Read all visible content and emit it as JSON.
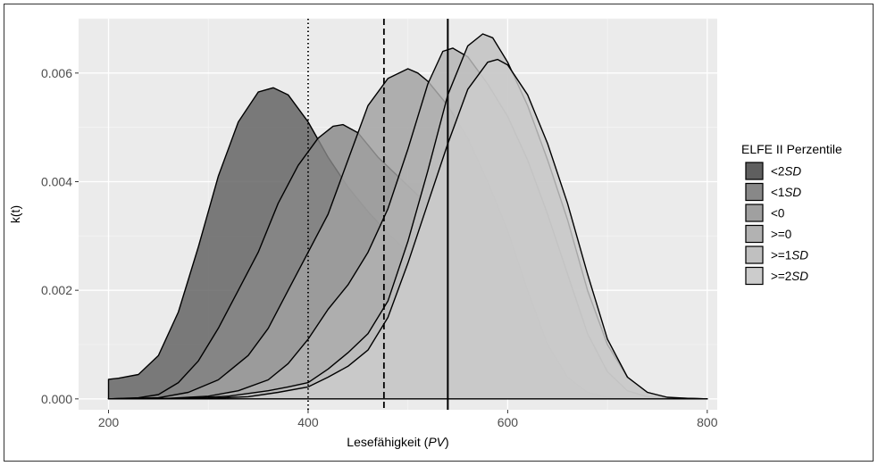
{
  "chart_data": {
    "type": "area",
    "xlabel_main": "Lesefähigkeit (",
    "xlabel_italic": "PV",
    "xlabel_end": ")",
    "ylabel": "k(t)",
    "xlim": [
      170,
      810
    ],
    "ylim": [
      -0.0002,
      0.007
    ],
    "x_ticks": [
      {
        "value": 200,
        "label": "200"
      },
      {
        "value": 400,
        "label": "400"
      },
      {
        "value": 600,
        "label": "600"
      },
      {
        "value": 800,
        "label": "800"
      }
    ],
    "y_ticks": [
      {
        "value": 0.0,
        "label": "0.000"
      },
      {
        "value": 0.002,
        "label": "0.002"
      },
      {
        "value": 0.004,
        "label": "0.004"
      },
      {
        "value": 0.006,
        "label": "0.006"
      }
    ],
    "grid": true,
    "legend_position": "right",
    "legend": {
      "title": "ELFE II Perzentile",
      "items": [
        {
          "prefix": "<2",
          "italic": "SD",
          "color": "#5f5f5f"
        },
        {
          "prefix": "<1",
          "italic": "SD",
          "color": "#888888"
        },
        {
          "prefix": "<0",
          "italic": "",
          "color": "#a0a0a0"
        },
        {
          "prefix": ">=0",
          "italic": "",
          "color": "#b2b2b2"
        },
        {
          "prefix": ">=1",
          "italic": "SD",
          "color": "#c0c0c0"
        },
        {
          "prefix": ">=2",
          "italic": "SD",
          "color": "#cccccc"
        }
      ]
    },
    "reference_lines": [
      {
        "x": 400,
        "style": "dotted"
      },
      {
        "x": 476,
        "style": "dashed"
      },
      {
        "x": 540,
        "style": "solid"
      }
    ],
    "series": [
      {
        "x": [
          200,
          210,
          230,
          250,
          270,
          290,
          310,
          330,
          350,
          365,
          380,
          400,
          420,
          440,
          460,
          480,
          500,
          520,
          540,
          560,
          580,
          600,
          620,
          640,
          660,
          680,
          700,
          720,
          740,
          760,
          780,
          800
        ],
        "y": [
          0.00036,
          0.00038,
          0.00045,
          0.0008,
          0.0016,
          0.0028,
          0.0041,
          0.0051,
          0.00565,
          0.00573,
          0.0056,
          0.0051,
          0.00445,
          0.0039,
          0.00345,
          0.00305,
          0.0027,
          0.0023,
          0.0017,
          0.001,
          0.0005,
          0.0002,
          8e-05,
          3e-05,
          1e-05,
          0,
          0,
          0,
          0,
          0,
          0,
          0
        ]
      },
      {
        "x": [
          200,
          230,
          250,
          270,
          290,
          310,
          330,
          350,
          370,
          390,
          410,
          425,
          435,
          450,
          470,
          490,
          510,
          530,
          550,
          570,
          590,
          610,
          630,
          650,
          670,
          690,
          710,
          730,
          750,
          770,
          800
        ],
        "y": [
          0,
          2e-05,
          8e-05,
          0.0003,
          0.0007,
          0.0013,
          0.002,
          0.0027,
          0.0036,
          0.0043,
          0.0048,
          0.00502,
          0.00505,
          0.0049,
          0.00445,
          0.0041,
          0.00375,
          0.00335,
          0.0028,
          0.002,
          0.0012,
          0.0006,
          0.00025,
          0.0001,
          4e-05,
          1e-05,
          0,
          0,
          0,
          0,
          0
        ]
      },
      {
        "x": [
          200,
          250,
          280,
          310,
          340,
          360,
          380,
          400,
          420,
          440,
          460,
          480,
          500,
          510,
          520,
          540,
          560,
          580,
          600,
          620,
          640,
          660,
          680,
          700,
          720,
          740,
          760,
          800
        ],
        "y": [
          0,
          2e-05,
          0.00012,
          0.00035,
          0.0008,
          0.0013,
          0.002,
          0.0027,
          0.0034,
          0.0044,
          0.0054,
          0.0059,
          0.00608,
          0.006,
          0.00585,
          0.0054,
          0.0048,
          0.004,
          0.0031,
          0.002,
          0.001,
          0.0004,
          0.00012,
          3e-05,
          1e-05,
          0,
          0,
          0
        ]
      },
      {
        "x": [
          200,
          260,
          300,
          330,
          360,
          380,
          400,
          420,
          440,
          460,
          480,
          500,
          520,
          535,
          545,
          560,
          580,
          600,
          620,
          640,
          660,
          680,
          700,
          720,
          740,
          760,
          800
        ],
        "y": [
          0,
          1e-05,
          5e-05,
          0.00015,
          0.00035,
          0.00065,
          0.0011,
          0.00165,
          0.0021,
          0.0027,
          0.0035,
          0.0046,
          0.0058,
          0.0064,
          0.00646,
          0.0063,
          0.0058,
          0.0052,
          0.0044,
          0.0034,
          0.0023,
          0.0012,
          0.0005,
          0.00015,
          4e-05,
          1e-05,
          0
        ]
      },
      {
        "x": [
          200,
          280,
          320,
          360,
          380,
          400,
          420,
          440,
          460,
          480,
          500,
          520,
          540,
          560,
          575,
          585,
          600,
          620,
          640,
          660,
          680,
          700,
          720,
          740,
          760,
          800
        ],
        "y": [
          0,
          1e-05,
          5e-05,
          0.00015,
          0.00022,
          0.0003,
          0.00055,
          0.00085,
          0.0012,
          0.0018,
          0.0029,
          0.0042,
          0.0056,
          0.0065,
          0.00672,
          0.00665,
          0.0062,
          0.0054,
          0.0044,
          0.0033,
          0.002,
          0.001,
          0.0004,
          0.00012,
          2e-05,
          0
        ]
      },
      {
        "x": [
          200,
          300,
          340,
          370,
          400,
          420,
          440,
          460,
          480,
          500,
          520,
          540,
          560,
          580,
          590,
          600,
          620,
          640,
          660,
          680,
          700,
          720,
          740,
          760,
          780,
          800
        ],
        "y": [
          0,
          1e-05,
          4e-05,
          0.00012,
          0.00022,
          0.0004,
          0.0006,
          0.0009,
          0.0015,
          0.0025,
          0.0036,
          0.0047,
          0.0057,
          0.0062,
          0.00625,
          0.00615,
          0.0056,
          0.0047,
          0.0036,
          0.0023,
          0.0011,
          0.0004,
          0.00012,
          3e-05,
          1e-05,
          0
        ]
      }
    ]
  }
}
